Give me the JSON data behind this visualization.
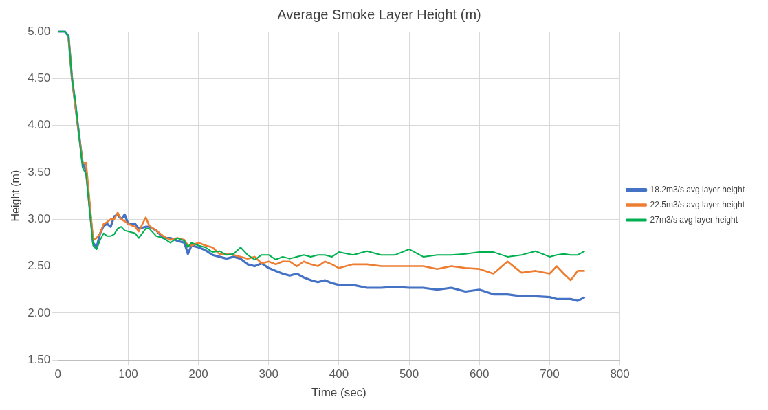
{
  "chart_data": {
    "type": "line",
    "title": "Average Smoke Layer Height (m)",
    "xlabel": "Time (sec)",
    "ylabel": "Height (m)",
    "x": [
      0,
      10,
      15,
      20,
      25,
      30,
      35,
      40,
      50,
      55,
      60,
      65,
      70,
      75,
      80,
      85,
      90,
      95,
      100,
      110,
      115,
      125,
      130,
      140,
      150,
      160,
      170,
      180,
      185,
      190,
      200,
      210,
      220,
      230,
      240,
      250,
      260,
      270,
      280,
      290,
      300,
      310,
      320,
      330,
      340,
      350,
      360,
      370,
      380,
      390,
      400,
      420,
      440,
      460,
      480,
      500,
      520,
      540,
      560,
      580,
      600,
      620,
      640,
      660,
      680,
      700,
      710,
      720,
      730,
      740,
      750
    ],
    "series": [
      {
        "name": "18.2m3/s avg layer height",
        "color": "#4472c4",
        "values": [
          5,
          5,
          4.95,
          4.5,
          4.2,
          3.9,
          3.6,
          3.52,
          2.75,
          2.7,
          2.85,
          2.93,
          2.95,
          2.92,
          3.03,
          3.05,
          3,
          3.05,
          2.95,
          2.95,
          2.9,
          2.92,
          2.92,
          2.88,
          2.8,
          2.8,
          2.77,
          2.75,
          2.63,
          2.72,
          2.7,
          2.67,
          2.62,
          2.6,
          2.58,
          2.6,
          2.58,
          2.52,
          2.5,
          2.53,
          2.48,
          2.45,
          2.42,
          2.4,
          2.42,
          2.38,
          2.35,
          2.33,
          2.35,
          2.32,
          2.3,
          2.3,
          2.27,
          2.27,
          2.28,
          2.27,
          2.27,
          2.25,
          2.27,
          2.23,
          2.25,
          2.2,
          2.2,
          2.18,
          2.18,
          2.17,
          2.15,
          2.15,
          2.15,
          2.13,
          2.17
        ]
      },
      {
        "name": "22.5m3/s avg layer height",
        "color": "#ed7d31",
        "values": [
          null,
          null,
          4.95,
          4.5,
          4.2,
          3.9,
          3.6,
          3.6,
          2.78,
          2.8,
          2.85,
          2.95,
          2.97,
          3,
          3,
          3.07,
          3,
          2.98,
          2.95,
          2.92,
          2.87,
          3.02,
          2.93,
          2.88,
          2.82,
          2.78,
          2.8,
          2.78,
          2.72,
          2.72,
          2.75,
          2.72,
          2.7,
          2.63,
          2.63,
          2.62,
          2.6,
          2.58,
          2.6,
          2.53,
          2.55,
          2.52,
          2.55,
          2.55,
          2.5,
          2.55,
          2.52,
          2.5,
          2.55,
          2.52,
          2.48,
          2.52,
          2.52,
          2.5,
          2.5,
          2.5,
          2.5,
          2.47,
          2.5,
          2.48,
          2.47,
          2.42,
          2.55,
          2.43,
          2.45,
          2.42,
          2.5,
          2.42,
          2.35,
          2.45,
          2.45
        ]
      },
      {
        "name": "27m3/s avg layer height",
        "color": "#00b050",
        "values": [
          5,
          5,
          4.95,
          4.5,
          4.25,
          3.9,
          3.55,
          3.48,
          2.72,
          2.68,
          2.78,
          2.85,
          2.82,
          2.82,
          2.84,
          2.9,
          2.92,
          2.88,
          2.87,
          2.85,
          2.8,
          2.9,
          2.9,
          2.82,
          2.8,
          2.75,
          2.8,
          2.77,
          2.7,
          2.75,
          2.72,
          2.7,
          2.65,
          2.66,
          2.62,
          2.63,
          2.7,
          2.62,
          2.57,
          2.62,
          2.62,
          2.57,
          2.6,
          2.58,
          2.6,
          2.62,
          2.6,
          2.62,
          2.62,
          2.6,
          2.65,
          2.62,
          2.66,
          2.62,
          2.62,
          2.68,
          2.6,
          2.62,
          2.62,
          2.63,
          2.65,
          2.65,
          2.6,
          2.62,
          2.66,
          2.6,
          2.62,
          2.63,
          2.62,
          2.62,
          2.66
        ]
      }
    ],
    "xlim": [
      0,
      800
    ],
    "xticks": [
      0,
      100,
      200,
      300,
      400,
      500,
      600,
      700,
      800
    ],
    "ylim": [
      1.5,
      5
    ],
    "yticks": [
      {
        "value": 1.5,
        "label": "1.50"
      },
      {
        "value": 2,
        "label": "2.00"
      },
      {
        "value": 2.5,
        "label": "2.50"
      },
      {
        "value": 3,
        "label": "3.00"
      },
      {
        "value": 3.5,
        "label": "3.50"
      },
      {
        "value": 4,
        "label": "4.00"
      },
      {
        "value": 4.5,
        "label": "4.50"
      },
      {
        "value": 5,
        "label": "5.00"
      }
    ],
    "grid": true,
    "legend": "right",
    "marker": "none",
    "line_style": "solid"
  }
}
